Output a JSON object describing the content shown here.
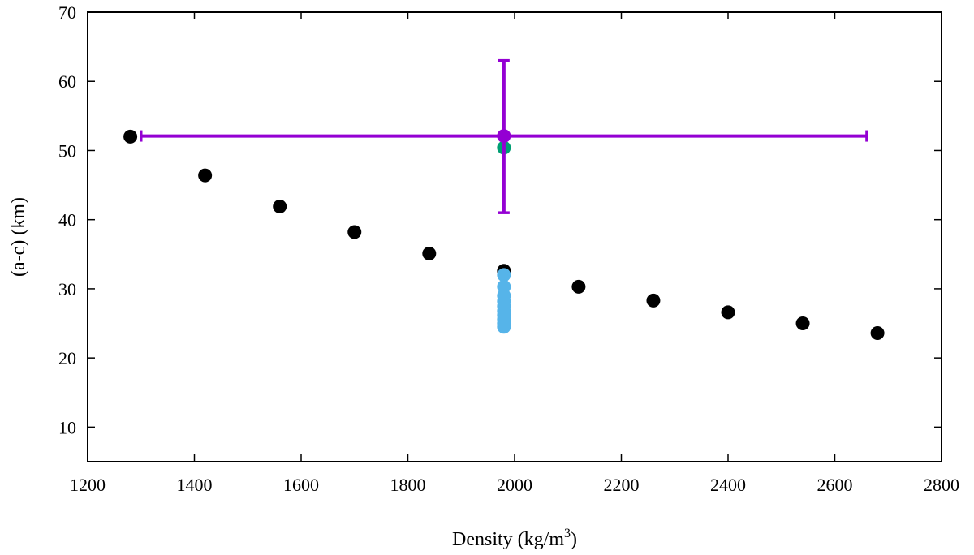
{
  "chart_data": {
    "type": "scatter",
    "title": "",
    "xlabel": "Density (kg/m",
    "xlabel_sup": "3",
    "xlabel_end": ")",
    "ylabel": "(a-c) (km)",
    "xlim": [
      1200,
      2800
    ],
    "ylim": [
      5,
      70
    ],
    "x_ticks": [
      1200,
      1400,
      1600,
      1800,
      2000,
      2200,
      2400,
      2600,
      2800
    ],
    "y_ticks": [
      10,
      20,
      30,
      40,
      50,
      60,
      70
    ],
    "grid": false,
    "series": [
      {
        "color": "#000000",
        "points": [
          {
            "x": 1280,
            "y": 52.0
          },
          {
            "x": 1420,
            "y": 46.4
          },
          {
            "x": 1560,
            "y": 41.9
          },
          {
            "x": 1700,
            "y": 38.2
          },
          {
            "x": 1840,
            "y": 35.1
          },
          {
            "x": 1980,
            "y": 32.6
          },
          {
            "x": 2120,
            "y": 30.3
          },
          {
            "x": 2260,
            "y": 28.3
          },
          {
            "x": 2400,
            "y": 26.6
          },
          {
            "x": 2540,
            "y": 25.0
          },
          {
            "x": 2680,
            "y": 23.6
          }
        ]
      },
      {
        "color": "#56b4e9",
        "points": [
          {
            "x": 1980,
            "y": 32.0
          },
          {
            "x": 1980,
            "y": 30.3
          },
          {
            "x": 1980,
            "y": 29.0
          },
          {
            "x": 1980,
            "y": 28.2
          },
          {
            "x": 1980,
            "y": 27.5
          },
          {
            "x": 1980,
            "y": 26.8
          },
          {
            "x": 1980,
            "y": 26.2
          },
          {
            "x": 1980,
            "y": 25.6
          },
          {
            "x": 1980,
            "y": 25.0
          },
          {
            "x": 1980,
            "y": 24.5
          }
        ]
      },
      {
        "color": "#009e73",
        "points": [
          {
            "x": 1980,
            "y": 50.4
          }
        ]
      },
      {
        "color": "#9400d3",
        "points": [
          {
            "x": 1980,
            "y": 52.1,
            "xerr": [
              1300,
              2660
            ],
            "yerr": [
              41.0,
              63.0
            ]
          }
        ]
      }
    ]
  }
}
